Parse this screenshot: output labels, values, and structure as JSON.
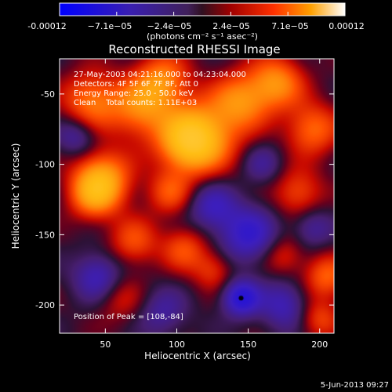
{
  "colorbar": {
    "tick_labels": [
      "-0.00012",
      "−7.1e−05",
      "−2.4e−05",
      "2.4e−05",
      "7.1e−05",
      "0.00012"
    ],
    "units": "(photons cm⁻² s⁻¹ asec⁻²)",
    "range": [
      -0.00012,
      0.00012
    ]
  },
  "chart_data": {
    "type": "heatmap",
    "title": "Reconstructed RHESSI Image",
    "xlabel": "Heliocentric X (arcsec)",
    "ylabel": "Heliocentric Y (arcsec)",
    "xlim": [
      18,
      210
    ],
    "ylim": [
      -220,
      -25
    ],
    "x_ticks": [
      50,
      100,
      150,
      200
    ],
    "y_ticks": [
      -50,
      -100,
      -150,
      -200
    ],
    "annotations": [
      "27-May-2003 04:21:16.000 to 04:23:04.000",
      "Detectors: 4F 5F 6F 7F 8F, Att 0",
      "Energy Range: 25.0 - 50.0 keV",
      "Clean    Total counts: 1.11E+03"
    ],
    "peak_label": "Position of Peak = [108,-84]",
    "peak_position": [
      108,
      -84
    ],
    "blobs": [
      {
        "x": 108,
        "y": -84,
        "amp": 1.0,
        "s": 14
      },
      {
        "x": 118,
        "y": -80,
        "amp": 0.85,
        "s": 18
      },
      {
        "x": 48,
        "y": -110,
        "amp": 0.95,
        "s": 14
      },
      {
        "x": 42,
        "y": -122,
        "amp": 0.7,
        "s": 12
      },
      {
        "x": 145,
        "y": -55,
        "amp": 0.8,
        "s": 14
      },
      {
        "x": 170,
        "y": -42,
        "amp": 0.85,
        "s": 13
      },
      {
        "x": 195,
        "y": -75,
        "amp": 0.7,
        "s": 13
      },
      {
        "x": 185,
        "y": -120,
        "amp": 0.55,
        "s": 12
      },
      {
        "x": 75,
        "y": -60,
        "amp": 0.8,
        "s": 15
      },
      {
        "x": 40,
        "y": -55,
        "amp": 0.75,
        "s": 14
      },
      {
        "x": 90,
        "y": -40,
        "amp": 0.75,
        "s": 13
      },
      {
        "x": 95,
        "y": -120,
        "amp": 0.55,
        "s": 11
      },
      {
        "x": 70,
        "y": -155,
        "amp": 0.55,
        "s": 12
      },
      {
        "x": 105,
        "y": -160,
        "amp": 0.55,
        "s": 11
      },
      {
        "x": 125,
        "y": -175,
        "amp": 0.45,
        "s": 10
      },
      {
        "x": 175,
        "y": -165,
        "amp": 0.4,
        "s": 10
      },
      {
        "x": 205,
        "y": -180,
        "amp": 0.65,
        "s": 11
      },
      {
        "x": 200,
        "y": -210,
        "amp": 0.5,
        "s": 10
      },
      {
        "x": 60,
        "y": -195,
        "amp": 0.35,
        "s": 12
      },
      {
        "x": 145,
        "y": -195,
        "amp": -0.9,
        "s": 9
      },
      {
        "x": 150,
        "y": -150,
        "amp": -0.7,
        "s": 14
      },
      {
        "x": 125,
        "y": -130,
        "amp": -0.55,
        "s": 12
      },
      {
        "x": 175,
        "y": -200,
        "amp": -0.55,
        "s": 12
      },
      {
        "x": 45,
        "y": -180,
        "amp": -0.6,
        "s": 12
      },
      {
        "x": 30,
        "y": -80,
        "amp": -0.45,
        "s": 10
      },
      {
        "x": 90,
        "y": -205,
        "amp": -0.4,
        "s": 12
      },
      {
        "x": 195,
        "y": -145,
        "amp": -0.4,
        "s": 10
      },
      {
        "x": 160,
        "y": -100,
        "amp": -0.35,
        "s": 10
      }
    ]
  },
  "footer": {
    "timestamp": "5-Jun-2013 09:27"
  }
}
